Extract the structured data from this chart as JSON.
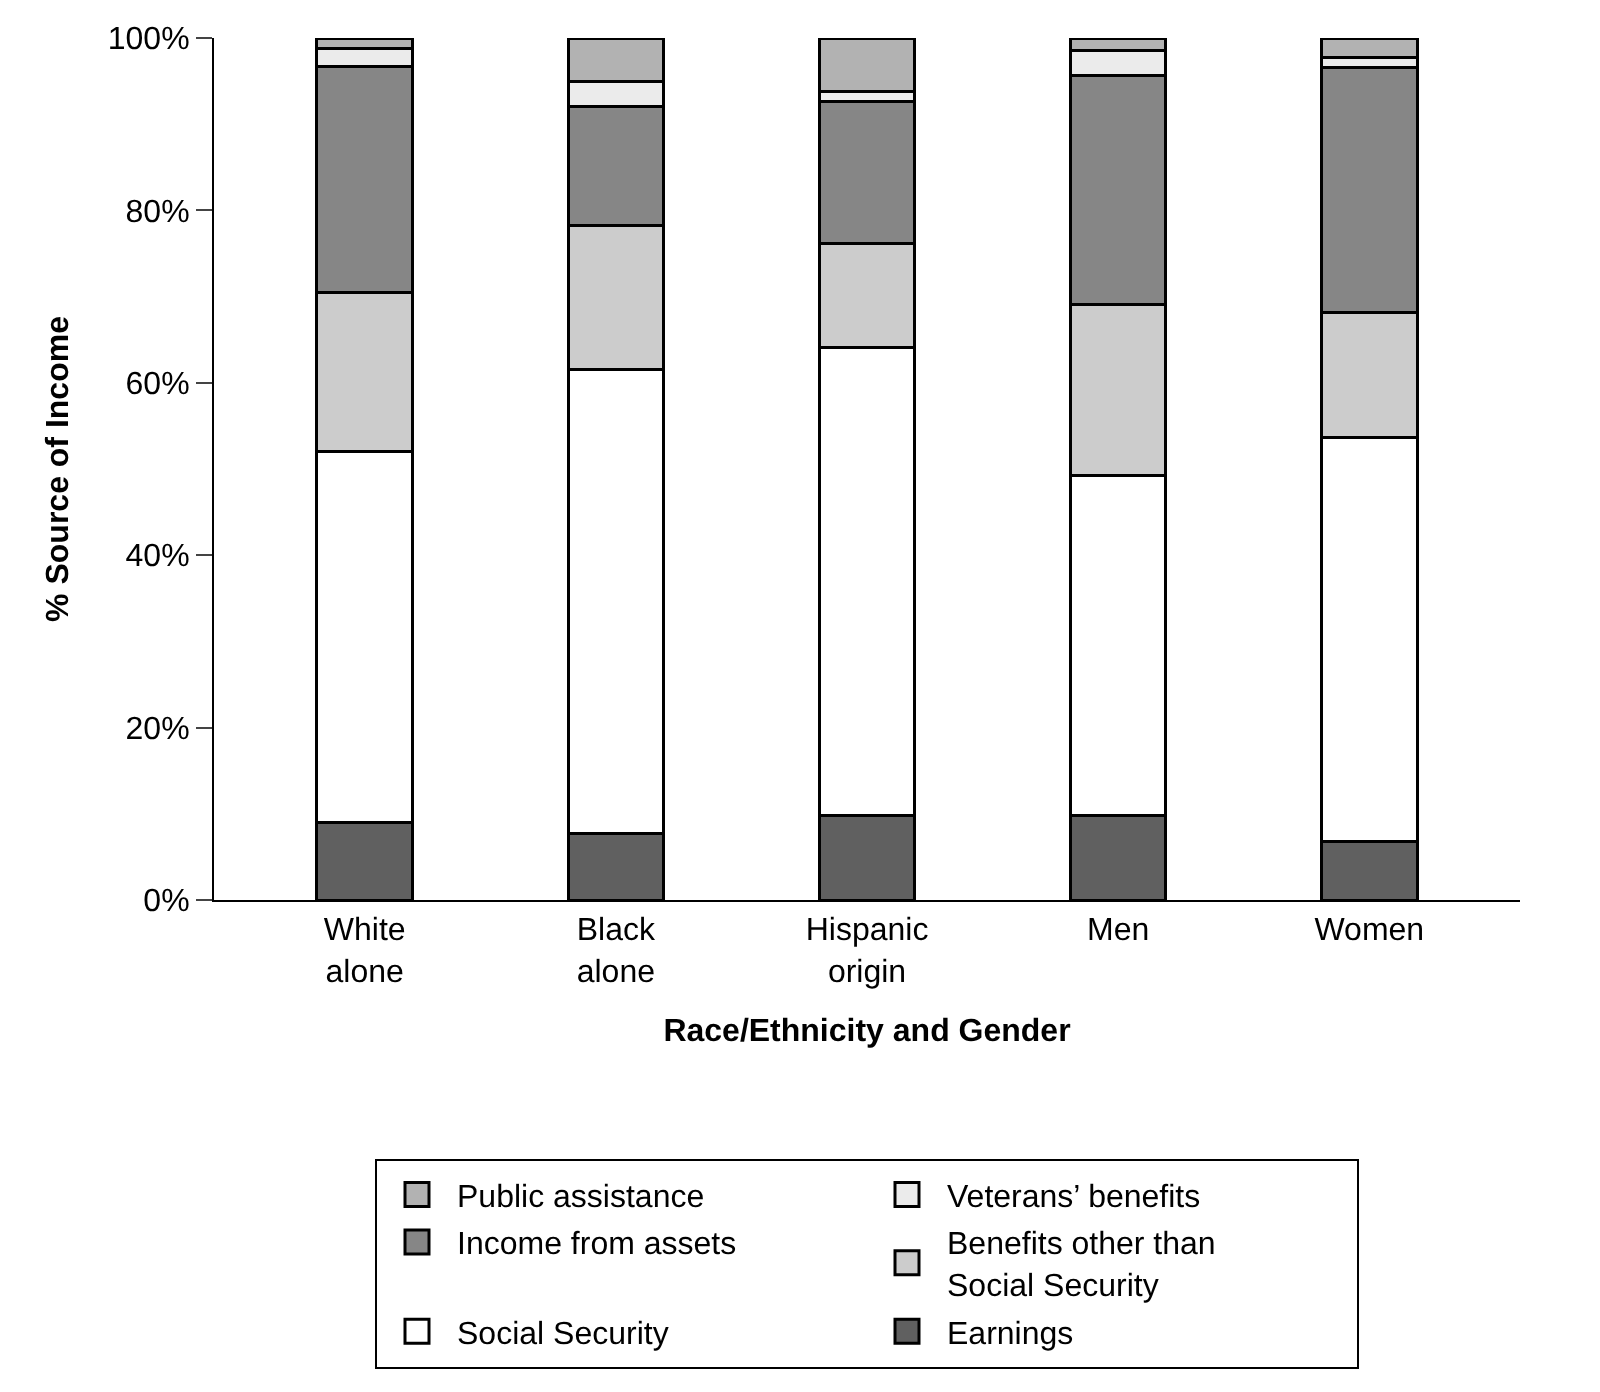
{
  "chart_data": {
    "type": "bar",
    "stacked": true,
    "xlabel": "Race/Ethnicity and Gender",
    "ylabel": "% Source of Income",
    "categories": [
      "White\nalone",
      "Black\nalone",
      "Hispanic\norigin",
      "Men",
      "Women"
    ],
    "series": [
      {
        "name": "Earnings",
        "color": "#606060",
        "values": [
          9.0,
          7.7,
          9.8,
          9.8,
          6.8
        ]
      },
      {
        "name": "Social Security",
        "color": "#ffffff",
        "values": [
          43.0,
          53.9,
          54.3,
          39.5,
          46.9
        ]
      },
      {
        "name": "Benefits other than\nSocial Security",
        "color": "#cccccc",
        "values": [
          18.5,
          16.6,
          12.1,
          19.8,
          14.4
        ]
      },
      {
        "name": "Income from assets",
        "color": "#868686",
        "values": [
          26.2,
          13.8,
          16.4,
          26.5,
          28.5
        ]
      },
      {
        "name": "Veterans’ benefits",
        "color": "#ebebeb",
        "values": [
          2.1,
          3.0,
          1.2,
          2.9,
          1.1
        ]
      },
      {
        "name": "Public assistance",
        "color": "#b2b2b2",
        "values": [
          1.2,
          5.0,
          6.2,
          1.5,
          2.3
        ]
      }
    ],
    "ylim": [
      0,
      100
    ],
    "yticks": [
      {
        "value": 0,
        "label": "0%"
      },
      {
        "value": 20,
        "label": "20%"
      },
      {
        "value": 40,
        "label": "40%"
      },
      {
        "value": 60,
        "label": "60%"
      },
      {
        "value": 80,
        "label": "80%"
      },
      {
        "value": 100,
        "label": "100%"
      }
    ],
    "legend": "bottom"
  }
}
